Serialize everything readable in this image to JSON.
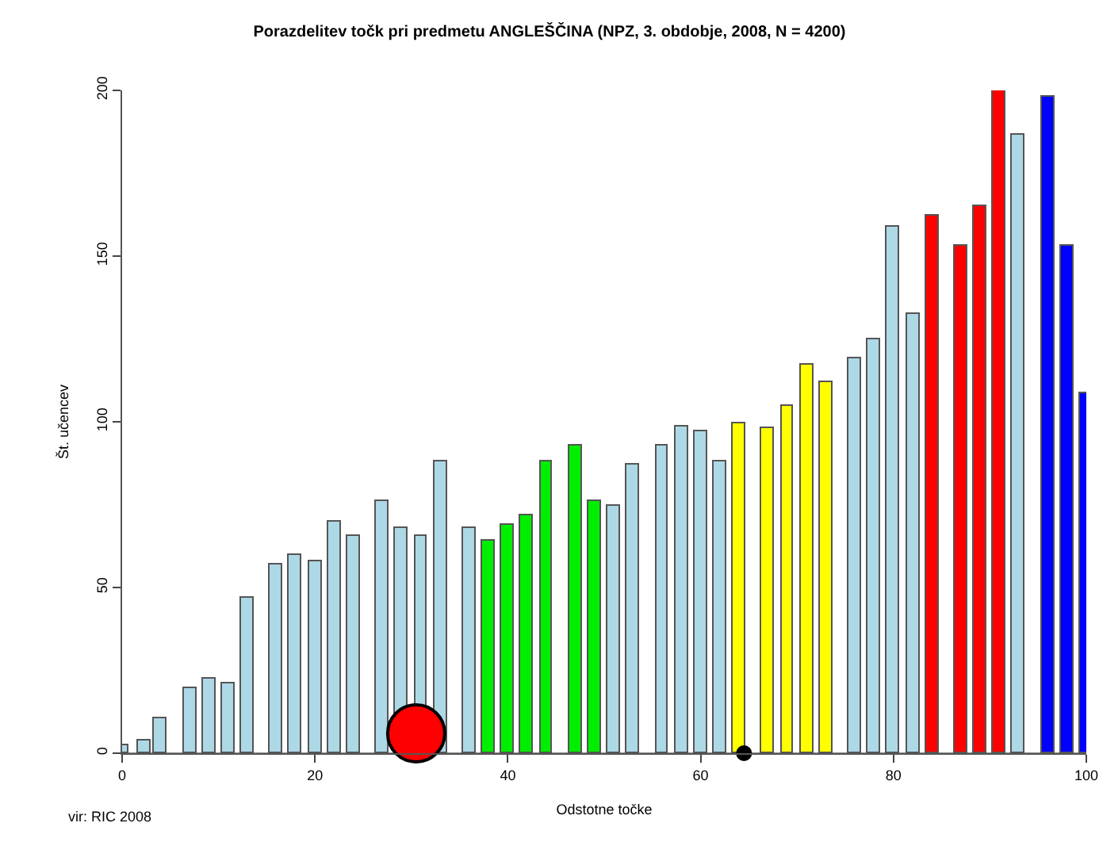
{
  "chart_data": {
    "type": "bar",
    "title": "Porazdelitev točk pri predmetu ANGLEŠČINA (NPZ, 3. obdobje, 2008, N = 4200)",
    "xlabel": "Odstotne točke",
    "ylabel": "Št. učencev",
    "annotations": [
      "vir: RIC 2008"
    ],
    "xlim": [
      0,
      100
    ],
    "xticks": [
      0,
      20,
      40,
      60,
      80,
      100
    ],
    "ylim": [
      0,
      200
    ],
    "yticks": [
      0,
      50,
      100,
      150,
      200
    ],
    "grid": false,
    "series": [
      {
        "type": "bar",
        "x": [
          0,
          2.3,
          4,
          7,
          9,
          11,
          13,
          16,
          18,
          20,
          22,
          24,
          27,
          29,
          31,
          33,
          36,
          38,
          40,
          42,
          44,
          47,
          49,
          51,
          53,
          56,
          58,
          60,
          62,
          64,
          67,
          69,
          71,
          73,
          76,
          78,
          80,
          82,
          84,
          87,
          89,
          91,
          93,
          96,
          98,
          100
        ],
        "values": [
          2.5,
          4,
          10.5,
          19.5,
          22.5,
          21,
          47,
          57,
          60,
          58,
          70,
          65.5,
          76,
          68,
          65.5,
          88,
          68,
          64,
          69,
          72,
          88,
          93,
          76,
          74.5,
          87,
          93,
          98.5,
          97,
          88,
          99.5,
          98,
          105,
          117,
          112,
          119,
          125,
          159,
          132.5,
          162,
          153,
          165,
          200,
          186.5,
          198,
          153,
          108.5
        ],
        "colors": [
          "#add8e6",
          "#add8e6",
          "#add8e6",
          "#add8e6",
          "#add8e6",
          "#add8e6",
          "#add8e6",
          "#add8e6",
          "#add8e6",
          "#add8e6",
          "#add8e6",
          "#add8e6",
          "#add8e6",
          "#add8e6",
          "#add8e6",
          "#add8e6",
          "#add8e6",
          "#00ee00",
          "#00ee00",
          "#00ee00",
          "#00ee00",
          "#00ee00",
          "#00ee00",
          "#add8e6",
          "#add8e6",
          "#add8e6",
          "#add8e6",
          "#add8e6",
          "#add8e6",
          "#ffff00",
          "#ffff00",
          "#ffff00",
          "#ffff00",
          "#ffff00",
          "#add8e6",
          "#add8e6",
          "#add8e6",
          "#add8e6",
          "#ff0000",
          "#ff0000",
          "#ff0000",
          "#ff0000",
          "#add8e6",
          "#0000ff",
          "#0000ff",
          "#0000ff"
        ]
      },
      {
        "type": "bubble",
        "x": [
          30.5,
          64.5
        ],
        "values": [
          6,
          0
        ],
        "sizes": [
          1,
          0.05
        ],
        "colors": [
          "#ff0000",
          "#000000"
        ]
      }
    ]
  }
}
